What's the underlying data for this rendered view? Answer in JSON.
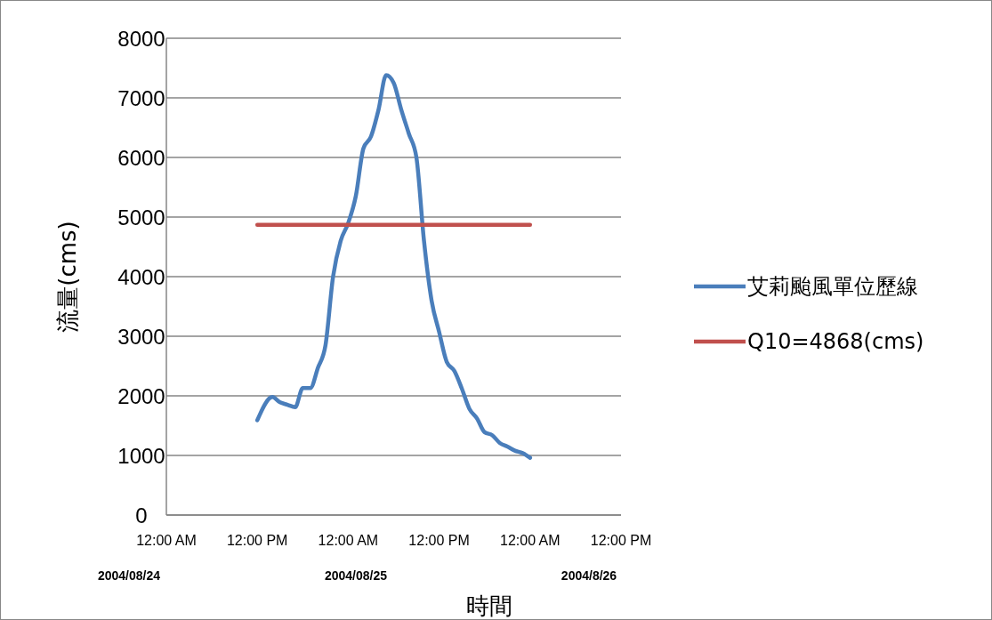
{
  "chart_data": {
    "type": "line",
    "xlabel": "時間",
    "ylabel": "流量(cms)",
    "xlim": [
      "2004-08-24T00:00",
      "2004-08-26T12:00"
    ],
    "xticks": [
      {
        "value": "2004-08-24T00:00",
        "label": "12:00 AM"
      },
      {
        "value": "2004-08-24T12:00",
        "label": "12:00 PM"
      },
      {
        "value": "2004-08-25T00:00",
        "label": "12:00 AM"
      },
      {
        "value": "2004-08-25T12:00",
        "label": "12:00 PM"
      },
      {
        "value": "2004-08-26T00:00",
        "label": "12:00 AM"
      },
      {
        "value": "2004-08-26T12:00",
        "label": "12:00 PM"
      }
    ],
    "ylim": [
      0,
      8000
    ],
    "yticks": [
      0,
      1000,
      2000,
      3000,
      4000,
      5000,
      6000,
      7000,
      8000
    ],
    "grid": "y",
    "legend": "right",
    "line_style": "solid",
    "marker": "none",
    "annotations": [
      "2004/08/24",
      "2004/08/25",
      "2004/8/26"
    ],
    "series": [
      {
        "name": "艾莉颱風單位歷線",
        "color": "#4a7ebb",
        "x": [
          "2004-08-24T12:00",
          "2004-08-24T14:00",
          "2004-08-24T15:00",
          "2004-08-24T16:00",
          "2004-08-24T17:00",
          "2004-08-24T18:00",
          "2004-08-24T19:00",
          "2004-08-24T20:00",
          "2004-08-24T21:00",
          "2004-08-24T22:00",
          "2004-08-24T23:00",
          "2004-08-25T00:00",
          "2004-08-25T01:00",
          "2004-08-25T02:00",
          "2004-08-25T03:00",
          "2004-08-25T04:00",
          "2004-08-25T05:00",
          "2004-08-25T06:00",
          "2004-08-25T07:00",
          "2004-08-25T08:00",
          "2004-08-25T09:00",
          "2004-08-25T10:00",
          "2004-08-25T11:00",
          "2004-08-25T12:00",
          "2004-08-25T13:00",
          "2004-08-25T14:00",
          "2004-08-25T15:00",
          "2004-08-25T16:00",
          "2004-08-25T17:00",
          "2004-08-25T18:00",
          "2004-08-25T19:00",
          "2004-08-25T20:00",
          "2004-08-25T21:00",
          "2004-08-25T22:00",
          "2004-08-25T23:00",
          "2004-08-26T00:00"
        ],
        "values": [
          1590,
          1980,
          1890,
          1850,
          1810,
          2130,
          2130,
          2470,
          2850,
          4000,
          4600,
          4900,
          5350,
          6150,
          6350,
          6800,
          7380,
          7250,
          6800,
          6400,
          6000,
          4600,
          3600,
          3070,
          2570,
          2420,
          2120,
          1780,
          1620,
          1390,
          1340,
          1210,
          1150,
          1080,
          1040,
          960
        ]
      },
      {
        "name": "Q10=4868(cms)",
        "color": "#c0504d",
        "x": [
          "2004-08-24T12:00",
          "2004-08-26T00:00"
        ],
        "values": [
          4868,
          4868
        ]
      }
    ]
  }
}
